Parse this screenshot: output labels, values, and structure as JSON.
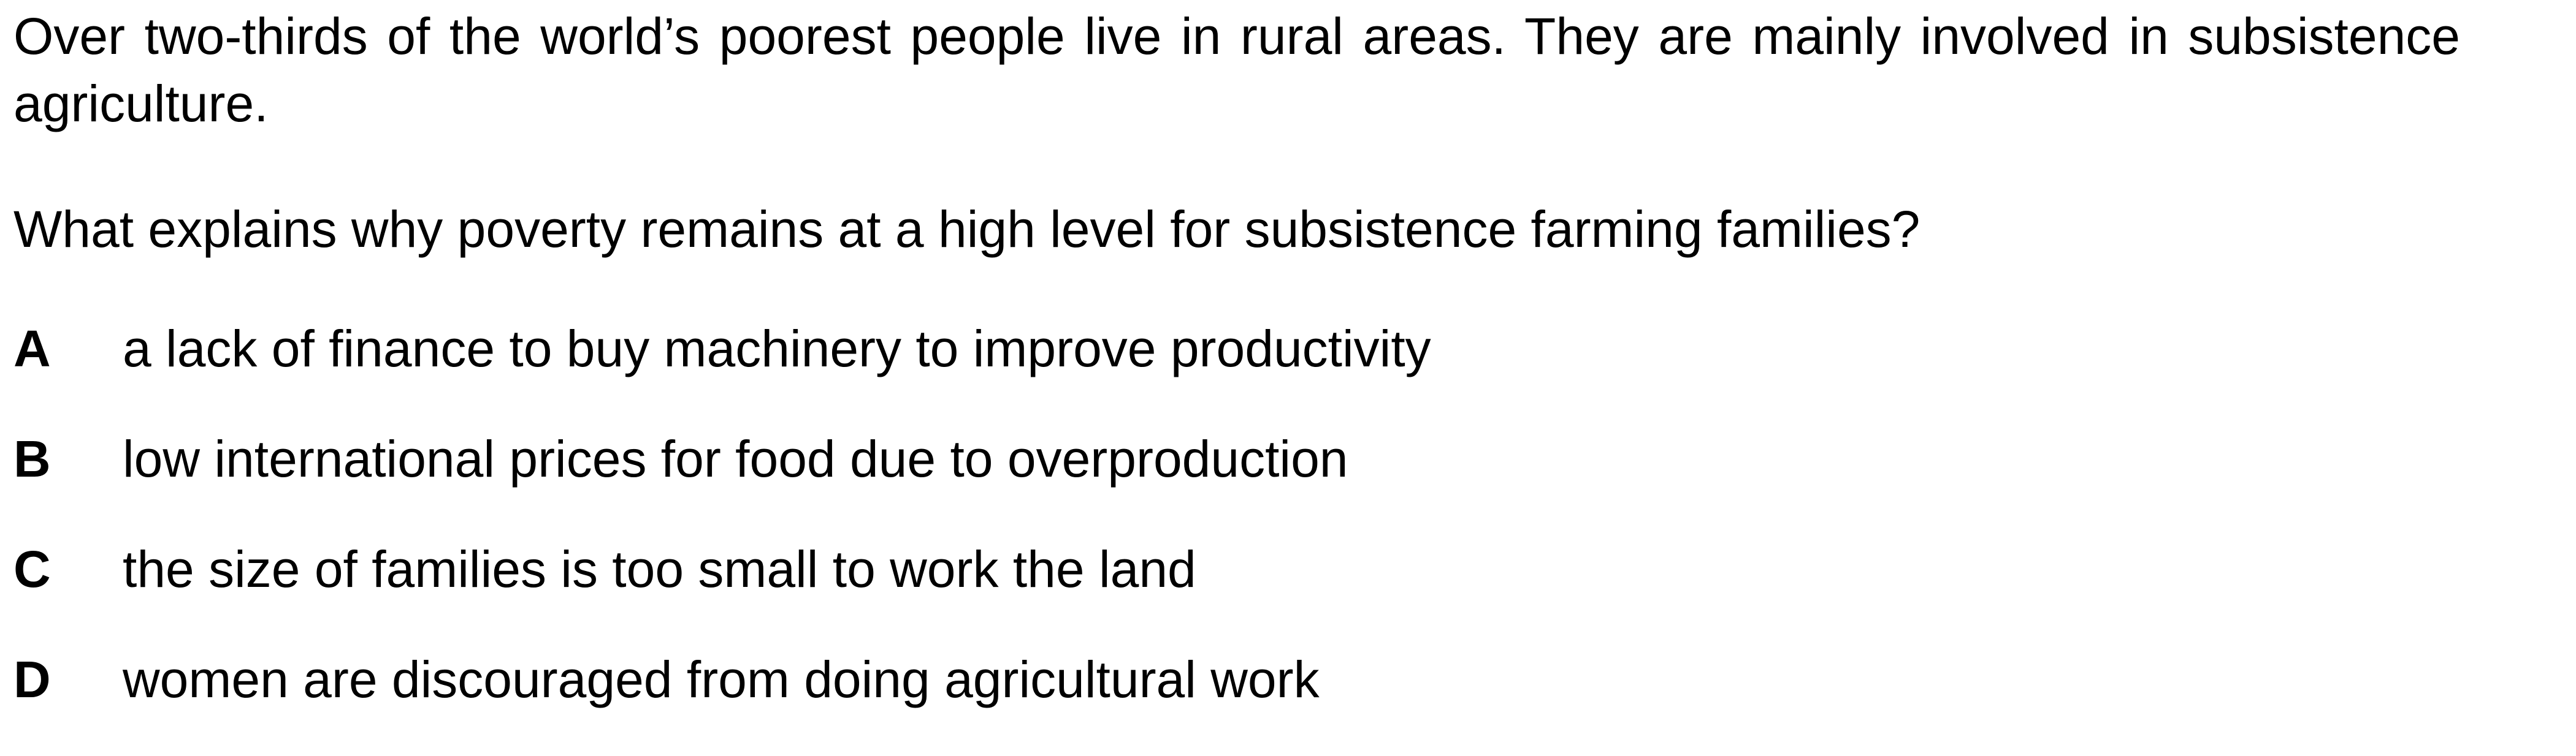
{
  "intro": "Over two-thirds of the world’s poorest people live in rural areas. They are mainly involved in subsistence agriculture.",
  "question": "What explains why poverty remains at a high level for subsistence farming families?",
  "options": [
    {
      "letter": "A",
      "text": "a lack of finance to buy machinery to improve productivity"
    },
    {
      "letter": "B",
      "text": "low international prices for food due to overproduction"
    },
    {
      "letter": "C",
      "text": "the size of families is too small to work the land"
    },
    {
      "letter": "D",
      "text": "women are discouraged from doing agricultural work"
    }
  ]
}
